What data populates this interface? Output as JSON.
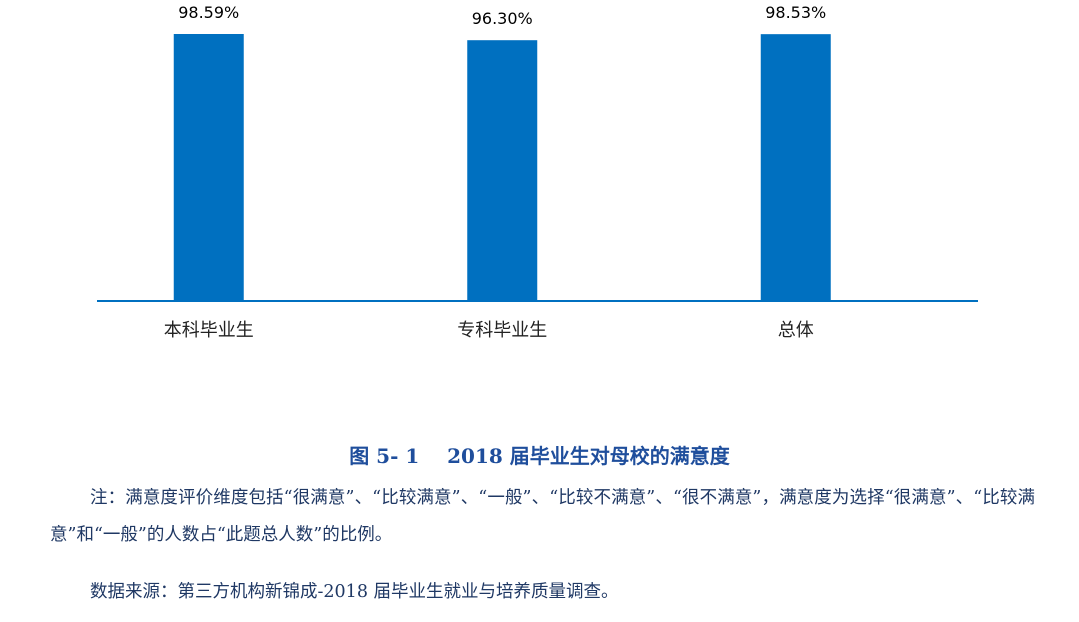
{
  "chart_data": {
    "type": "bar",
    "categories": [
      "本科毕业生",
      "专科毕业生",
      "总体"
    ],
    "values": [
      98.59,
      96.3,
      98.53
    ],
    "value_labels": [
      "98.59%",
      "96.30%",
      "98.53%"
    ],
    "color": "#0070c0"
  },
  "caption": "图 5- 1    2018 届毕业生对母校的满意度",
  "note": "注：满意度评价维度包括“很满意”、“比较满意”、“一般”、“比较不满意”、“很不满意”，满意度为选择“很满意”、“比较满意”和“一般”的人数占“此题总人数”的比例。",
  "source": "数据来源：第三方机构新锦成-2018 届毕业生就业与培养质量调查。"
}
